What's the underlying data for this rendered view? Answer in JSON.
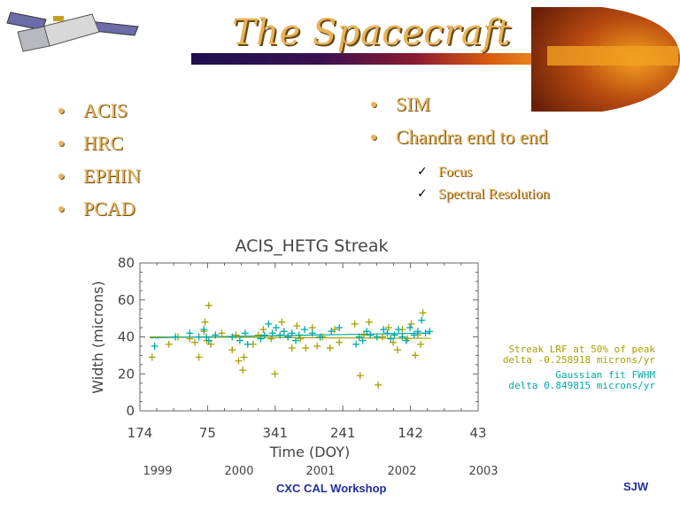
{
  "title": "The Spacecraft",
  "left_bullets": [
    "ACIS",
    "HRC",
    "EPHIN",
    "PCAD"
  ],
  "right_bullets": [
    "SIM",
    "Chandra end to end"
  ],
  "sub_items": [
    "Focus",
    "Spectral Resolution"
  ],
  "footer": {
    "center": "CXC CAL Workshop",
    "right": "SJW"
  },
  "colors": {
    "title_gold": "#e7b35a",
    "series1": "#a8a000",
    "series2": "#00a8a8",
    "footer_blue": "#1f2ea0"
  },
  "chart_data": {
    "type": "scatter",
    "title": "ACIS_HETG Streak",
    "xlabel": "Time (DOY)",
    "ylabel": "Width (microns)",
    "ylim": [
      0,
      80
    ],
    "yticks": [
      0,
      20,
      40,
      60,
      80
    ],
    "x_tick_labels": [
      "174",
      "75",
      "341",
      "241",
      "142",
      "43"
    ],
    "year_labels": [
      "1999",
      "2000",
      "2001",
      "2002",
      "2003"
    ],
    "xlim": [
      "1999-06-23",
      "2003-02-12"
    ],
    "grid": false,
    "legend_position": "right",
    "legend": [
      {
        "line1": "Streak LRF at 50% of peak",
        "line2": "delta -0.258918 microns/yr"
      },
      {
        "line1": "Gaussian fit FWHM",
        "line2": "delta 0.849815 microns/yr"
      }
    ],
    "series": [
      {
        "name": "Streak LRF at 50% of peak",
        "color": "#a8a000",
        "x": [
          "1999-08-10",
          "1999-10-15",
          "1999-11-20",
          "2000-01-05",
          "2000-01-25",
          "2000-02-10",
          "2000-03-01",
          "2000-03-05",
          "2000-03-12",
          "2000-03-20",
          "2000-03-28",
          "2000-05-10",
          "2000-06-20",
          "2000-07-05",
          "2000-07-15",
          "2000-08-01",
          "2000-08-05",
          "2000-09-10",
          "2000-10-01",
          "2000-10-20",
          "2000-11-20",
          "2000-12-05",
          "2001-01-01",
          "2001-01-25",
          "2001-02-10",
          "2001-03-01",
          "2001-03-15",
          "2001-04-05",
          "2001-05-01",
          "2001-05-20",
          "2001-06-10",
          "2001-07-10",
          "2001-07-28",
          "2001-08-15",
          "2001-10-15",
          "2001-11-05",
          "2001-11-20",
          "2001-12-10",
          "2002-01-15",
          "2002-02-01",
          "2002-02-25",
          "2002-03-15",
          "2002-04-01",
          "2002-04-20",
          "2002-05-10",
          "2002-05-25",
          "2002-06-10",
          "2002-06-20",
          "2002-07-01",
          "2002-07-10"
        ],
        "y": [
          29,
          36,
          40,
          39,
          37,
          29,
          43,
          48,
          38,
          57,
          36,
          42,
          33,
          41,
          27,
          22,
          29,
          36,
          41,
          44,
          39,
          20,
          48,
          40,
          34,
          46,
          39,
          34,
          45,
          35,
          40,
          34,
          44,
          37,
          47,
          19,
          41,
          48,
          14,
          40,
          45,
          37,
          33,
          44,
          39,
          47,
          30,
          41,
          36,
          53
        ]
      },
      {
        "name": "Gaussian fit FWHM",
        "color": "#00a8a8",
        "x": [
          "1999-08-20",
          "1999-11-10",
          "2000-01-05",
          "2000-02-10",
          "2000-03-01",
          "2000-03-10",
          "2000-03-20",
          "2000-04-15",
          "2000-06-20",
          "2000-07-20",
          "2000-08-10",
          "2000-08-20",
          "2000-10-10",
          "2000-10-25",
          "2000-11-10",
          "2000-11-25",
          "2000-12-10",
          "2000-12-25",
          "2001-01-10",
          "2001-01-25",
          "2001-02-10",
          "2001-02-25",
          "2001-03-10",
          "2001-04-01",
          "2001-05-01",
          "2001-06-01",
          "2001-07-15",
          "2001-08-15",
          "2001-10-20",
          "2001-11-01",
          "2001-11-15",
          "2001-12-01",
          "2001-12-15",
          "2002-01-10",
          "2002-02-05",
          "2002-02-20",
          "2002-03-05",
          "2002-03-20",
          "2002-04-05",
          "2002-04-20",
          "2002-05-05",
          "2002-05-20",
          "2002-06-05",
          "2002-06-20",
          "2002-07-05",
          "2002-07-20",
          "2002-08-05"
        ],
        "y": [
          35,
          40,
          42,
          40,
          44,
          40,
          38,
          41,
          40,
          38,
          42,
          36,
          39,
          41,
          47,
          42,
          45,
          41,
          43,
          40,
          42,
          38,
          41,
          44,
          42,
          40,
          43,
          45,
          36,
          40,
          38,
          43,
          41,
          40,
          44,
          42,
          39,
          41,
          44,
          40,
          38,
          45,
          41,
          43,
          49,
          42,
          43
        ]
      }
    ],
    "fits": [
      {
        "series": "Streak LRF at 50% of peak",
        "color": "#a8a000",
        "x": [
          "1999-08-01",
          "2002-08-10"
        ],
        "y": [
          40,
          39.2
        ]
      },
      {
        "series": "Gaussian fit FWHM",
        "color": "#00a8a8",
        "x": [
          "1999-08-01",
          "2002-08-10"
        ],
        "y": [
          39.5,
          42.1
        ]
      }
    ]
  }
}
